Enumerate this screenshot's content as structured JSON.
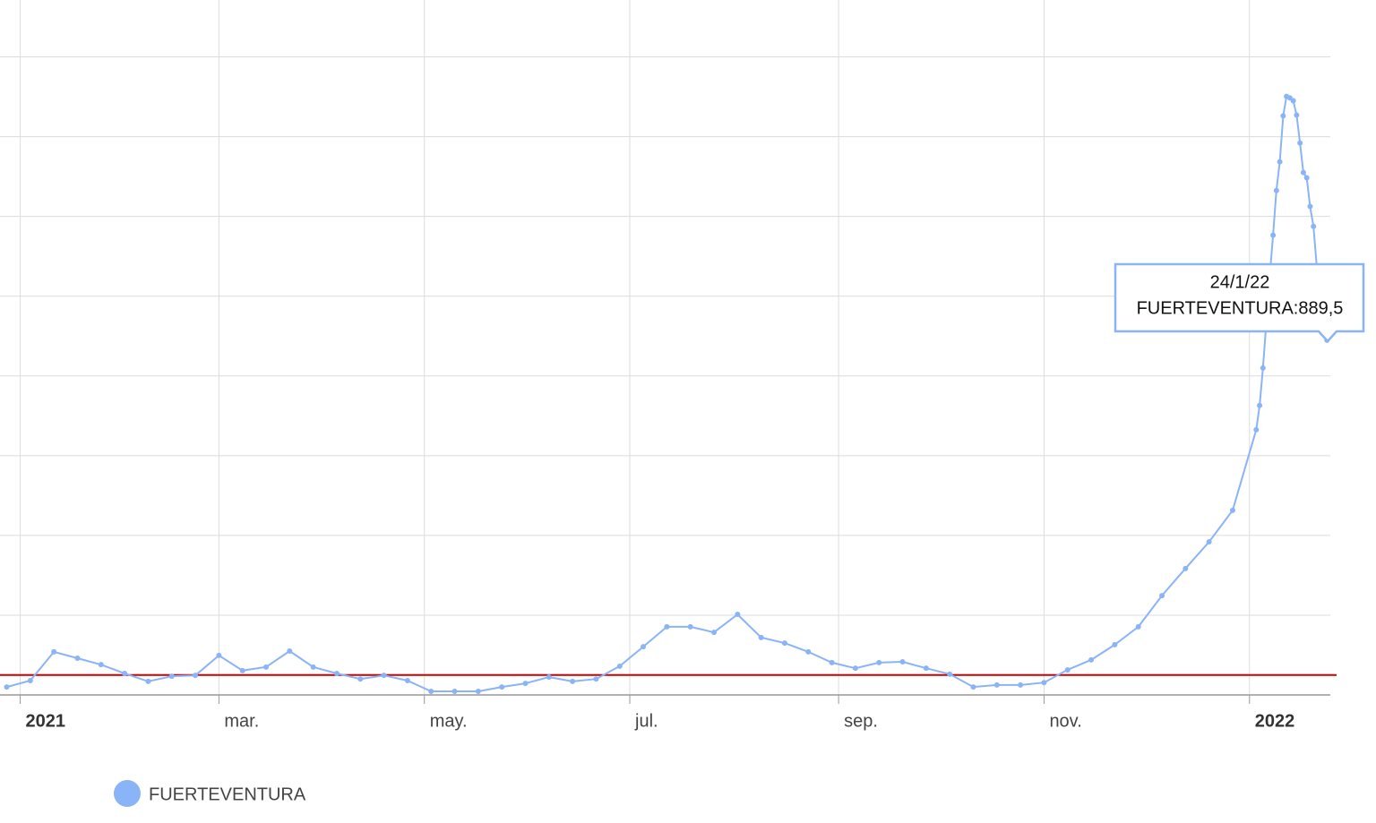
{
  "chart_data": {
    "type": "line",
    "x": [
      "28/12/20",
      "4/1/21",
      "11/1/21",
      "18/1/21",
      "25/1/21",
      "1/2/21",
      "8/2/21",
      "15/2/21",
      "22/2/21",
      "1/3/21",
      "8/3/21",
      "15/3/21",
      "22/3/21",
      "29/3/21",
      "5/4/21",
      "12/4/21",
      "19/4/21",
      "26/4/21",
      "3/5/21",
      "10/5/21",
      "17/5/21",
      "24/5/21",
      "31/5/21",
      "7/6/21",
      "14/6/21",
      "21/6/21",
      "28/6/21",
      "5/7/21",
      "12/7/21",
      "19/7/21",
      "26/7/21",
      "2/8/21",
      "9/8/21",
      "16/8/21",
      "23/8/21",
      "30/8/21",
      "6/9/21",
      "13/9/21",
      "20/9/21",
      "27/9/21",
      "4/10/21",
      "11/10/21",
      "18/10/21",
      "25/10/21",
      "1/11/21",
      "8/11/21",
      "15/11/21",
      "22/11/21",
      "29/11/21",
      "6/12/21",
      "13/12/21",
      "20/12/21",
      "27/12/21",
      "3/1/22",
      "4/1/22",
      "5/1/22",
      "6/1/22",
      "7/1/22",
      "8/1/22",
      "9/1/22",
      "10/1/22",
      "11/1/22",
      "12/1/22",
      "13/1/22",
      "14/1/22",
      "15/1/22",
      "16/1/22",
      "17/1/22",
      "18/1/22",
      "19/1/22",
      "20/1/22",
      "21/1/22",
      "22/1/22",
      "23/1/22",
      "24/1/22"
    ],
    "series": [
      {
        "name": "FUERTEVENTURA",
        "color": "#8ab4f8",
        "values": [
          20,
          36,
          108,
          92,
          76,
          54,
          34,
          47,
          49,
          99,
          61,
          70,
          110,
          70,
          54,
          40,
          49,
          36,
          9,
          9,
          9,
          20,
          29,
          45,
          34,
          40,
          72,
          121,
          171,
          171,
          157,
          202,
          144,
          130,
          108,
          81,
          67,
          81,
          83,
          67,
          52,
          20,
          25,
          25,
          31,
          63,
          88,
          126,
          171,
          249,
          317,
          384,
          463,
          665,
          726,
          820,
          935,
          1047,
          1153,
          1265,
          1337,
          1452,
          1501,
          1497,
          1490,
          1454,
          1384,
          1310,
          1297,
          1225,
          1175,
          1070,
          1002,
          946,
          889.5
        ]
      }
    ],
    "xlim": [
      "26/12/20",
      "25/1/22"
    ],
    "xticks": [
      {
        "value": "1/1/21",
        "label": "2021"
      },
      {
        "value": "1/3/21",
        "label": "mar."
      },
      {
        "value": "1/5/21",
        "label": "may."
      },
      {
        "value": "1/7/21",
        "label": "jul."
      },
      {
        "value": "1/9/21",
        "label": "sep."
      },
      {
        "value": "1/11/21",
        "label": "nov."
      },
      {
        "value": "1/1/22",
        "label": "2022"
      }
    ],
    "ylim": [
      0,
      1700
    ],
    "yticks": [
      0,
      200,
      400,
      600,
      800,
      1000,
      1200,
      1400,
      1600
    ],
    "grid": true,
    "reference_line": {
      "value": 50,
      "color": "#cc0000"
    },
    "legend": "bottom-left",
    "tooltip": {
      "date": "24/1/22",
      "text": "FUERTEVENTURA:889,5"
    }
  }
}
